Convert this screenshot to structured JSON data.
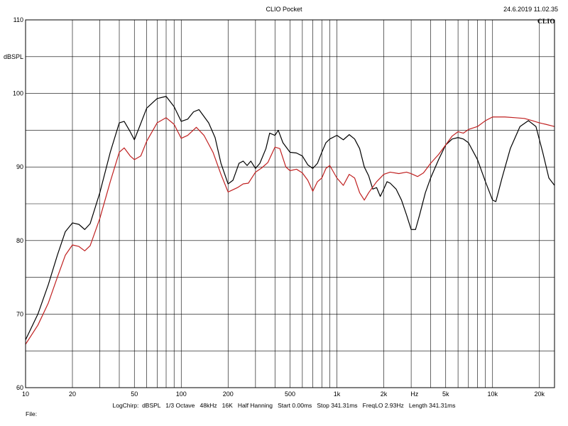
{
  "header": {
    "title": "CLIO Pocket",
    "timestamp": "24.6.2019 11.02.35",
    "logo": "CLIO"
  },
  "footer": {
    "params": "LogChirp:  dBSPL   1/3 Octave   48kHz   16K   Half Hanning   Start 0.00ms   Stop 341.31ms   FreqLO 2.93Hz   Length 341.31ms",
    "file_label": "File:"
  },
  "chart_data": {
    "type": "line",
    "title": "CLIO Pocket",
    "xlabel": "Hz",
    "ylabel": "dBSPL",
    "xscale": "log",
    "xlim": [
      10,
      25000
    ],
    "ylim": [
      60,
      110
    ],
    "grid": true,
    "x_tick_labels": [
      {
        "value": 10,
        "label": "10"
      },
      {
        "value": 20,
        "label": "20"
      },
      {
        "value": 50,
        "label": "50"
      },
      {
        "value": 100,
        "label": "100"
      },
      {
        "value": 200,
        "label": "200"
      },
      {
        "value": 500,
        "label": "500"
      },
      {
        "value": 1000,
        "label": "1k"
      },
      {
        "value": 2000,
        "label": "2k"
      },
      {
        "value": 5000,
        "label": "5k"
      },
      {
        "value": 10000,
        "label": "10k"
      },
      {
        "value": 20000,
        "label": "20k"
      }
    ],
    "y_tick_labels": [
      {
        "value": 60,
        "label": "60"
      },
      {
        "value": 70,
        "label": "70"
      },
      {
        "value": 80,
        "label": "80"
      },
      {
        "value": 90,
        "label": "90"
      },
      {
        "value": 100,
        "label": "100"
      },
      {
        "value": 110,
        "label": "110"
      }
    ],
    "series": [
      {
        "color": "#000000",
        "points": [
          [
            10,
            66.5
          ],
          [
            12,
            70
          ],
          [
            14,
            74
          ],
          [
            16,
            78
          ],
          [
            18,
            81.2
          ],
          [
            20,
            82.4
          ],
          [
            22,
            82.2
          ],
          [
            24,
            81.5
          ],
          [
            26,
            82.3
          ],
          [
            30,
            86.5
          ],
          [
            35,
            92
          ],
          [
            40,
            96
          ],
          [
            43,
            96.2
          ],
          [
            47,
            94.8
          ],
          [
            50,
            93.7
          ],
          [
            54,
            95.5
          ],
          [
            60,
            98
          ],
          [
            70,
            99.3
          ],
          [
            80,
            99.6
          ],
          [
            90,
            98.2
          ],
          [
            100,
            96.2
          ],
          [
            110,
            96.5
          ],
          [
            120,
            97.5
          ],
          [
            130,
            97.8
          ],
          [
            150,
            96
          ],
          [
            165,
            94
          ],
          [
            180,
            90.5
          ],
          [
            200,
            87.7
          ],
          [
            215,
            88.2
          ],
          [
            235,
            90.5
          ],
          [
            250,
            90.8
          ],
          [
            265,
            90.2
          ],
          [
            280,
            90.8
          ],
          [
            300,
            89.8
          ],
          [
            320,
            90.5
          ],
          [
            350,
            92.5
          ],
          [
            370,
            94.6
          ],
          [
            400,
            94.3
          ],
          [
            420,
            95
          ],
          [
            450,
            93.3
          ],
          [
            500,
            92
          ],
          [
            550,
            91.9
          ],
          [
            600,
            91.5
          ],
          [
            650,
            90.3
          ],
          [
            700,
            89.8
          ],
          [
            750,
            90.5
          ],
          [
            800,
            92
          ],
          [
            850,
            93.3
          ],
          [
            900,
            93.8
          ],
          [
            1000,
            94.3
          ],
          [
            1100,
            93.7
          ],
          [
            1200,
            94.4
          ],
          [
            1300,
            93.8
          ],
          [
            1400,
            92.5
          ],
          [
            1500,
            90
          ],
          [
            1600,
            88.8
          ],
          [
            1700,
            87
          ],
          [
            1800,
            87.2
          ],
          [
            1900,
            86
          ],
          [
            2000,
            87
          ],
          [
            2100,
            88
          ],
          [
            2200,
            87.8
          ],
          [
            2400,
            87
          ],
          [
            2600,
            85.5
          ],
          [
            2800,
            83.5
          ],
          [
            3000,
            81.5
          ],
          [
            3200,
            81.5
          ],
          [
            3400,
            83.5
          ],
          [
            3700,
            86.5
          ],
          [
            4000,
            88.5
          ],
          [
            4500,
            91
          ],
          [
            5000,
            93
          ],
          [
            5500,
            93.8
          ],
          [
            6000,
            94
          ],
          [
            6500,
            93.8
          ],
          [
            7000,
            93.3
          ],
          [
            8000,
            91
          ],
          [
            9000,
            88
          ],
          [
            10000,
            85.5
          ],
          [
            10500,
            85.3
          ],
          [
            11500,
            88.5
          ],
          [
            13000,
            92.5
          ],
          [
            15000,
            95.5
          ],
          [
            17000,
            96.3
          ],
          [
            19000,
            95.5
          ],
          [
            21000,
            92
          ],
          [
            23000,
            88.5
          ],
          [
            25000,
            87.5
          ]
        ]
      },
      {
        "color": "#c02020",
        "points": [
          [
            10,
            65.9
          ],
          [
            12,
            68.5
          ],
          [
            14,
            71.5
          ],
          [
            16,
            75
          ],
          [
            18,
            78
          ],
          [
            20,
            79.4
          ],
          [
            22,
            79.2
          ],
          [
            24,
            78.6
          ],
          [
            26,
            79.3
          ],
          [
            30,
            83
          ],
          [
            35,
            88
          ],
          [
            40,
            92
          ],
          [
            43,
            92.6
          ],
          [
            47,
            91.5
          ],
          [
            50,
            91
          ],
          [
            55,
            91.5
          ],
          [
            60,
            93.5
          ],
          [
            70,
            96
          ],
          [
            80,
            96.7
          ],
          [
            90,
            95.8
          ],
          [
            100,
            93.9
          ],
          [
            110,
            94.3
          ],
          [
            125,
            95.4
          ],
          [
            140,
            94.3
          ],
          [
            160,
            92
          ],
          [
            180,
            89
          ],
          [
            200,
            86.6
          ],
          [
            230,
            87.2
          ],
          [
            250,
            87.7
          ],
          [
            270,
            87.8
          ],
          [
            300,
            89.3
          ],
          [
            330,
            89.9
          ],
          [
            360,
            90.6
          ],
          [
            400,
            92.7
          ],
          [
            430,
            92.5
          ],
          [
            470,
            90
          ],
          [
            500,
            89.5
          ],
          [
            550,
            89.7
          ],
          [
            600,
            89.2
          ],
          [
            650,
            88.2
          ],
          [
            700,
            86.7
          ],
          [
            750,
            88
          ],
          [
            800,
            88.5
          ],
          [
            850,
            89.8
          ],
          [
            900,
            90.2
          ],
          [
            1000,
            88.5
          ],
          [
            1100,
            87.5
          ],
          [
            1200,
            89
          ],
          [
            1300,
            88.5
          ],
          [
            1400,
            86.5
          ],
          [
            1500,
            85.5
          ],
          [
            1600,
            86.5
          ],
          [
            1800,
            88
          ],
          [
            2000,
            89
          ],
          [
            2200,
            89.3
          ],
          [
            2500,
            89.1
          ],
          [
            2800,
            89.3
          ],
          [
            3000,
            89.1
          ],
          [
            3300,
            88.7
          ],
          [
            3600,
            89.2
          ],
          [
            4000,
            90.5
          ],
          [
            4500,
            91.7
          ],
          [
            5000,
            93
          ],
          [
            5500,
            94.2
          ],
          [
            6000,
            94.8
          ],
          [
            6500,
            94.6
          ],
          [
            7000,
            95.1
          ],
          [
            8000,
            95.5
          ],
          [
            9000,
            96.3
          ],
          [
            10000,
            96.8
          ],
          [
            12000,
            96.8
          ],
          [
            14000,
            96.7
          ],
          [
            16000,
            96.6
          ],
          [
            18000,
            96.3
          ],
          [
            20000,
            96
          ],
          [
            22000,
            95.8
          ],
          [
            25000,
            95.5
          ]
        ]
      }
    ]
  }
}
